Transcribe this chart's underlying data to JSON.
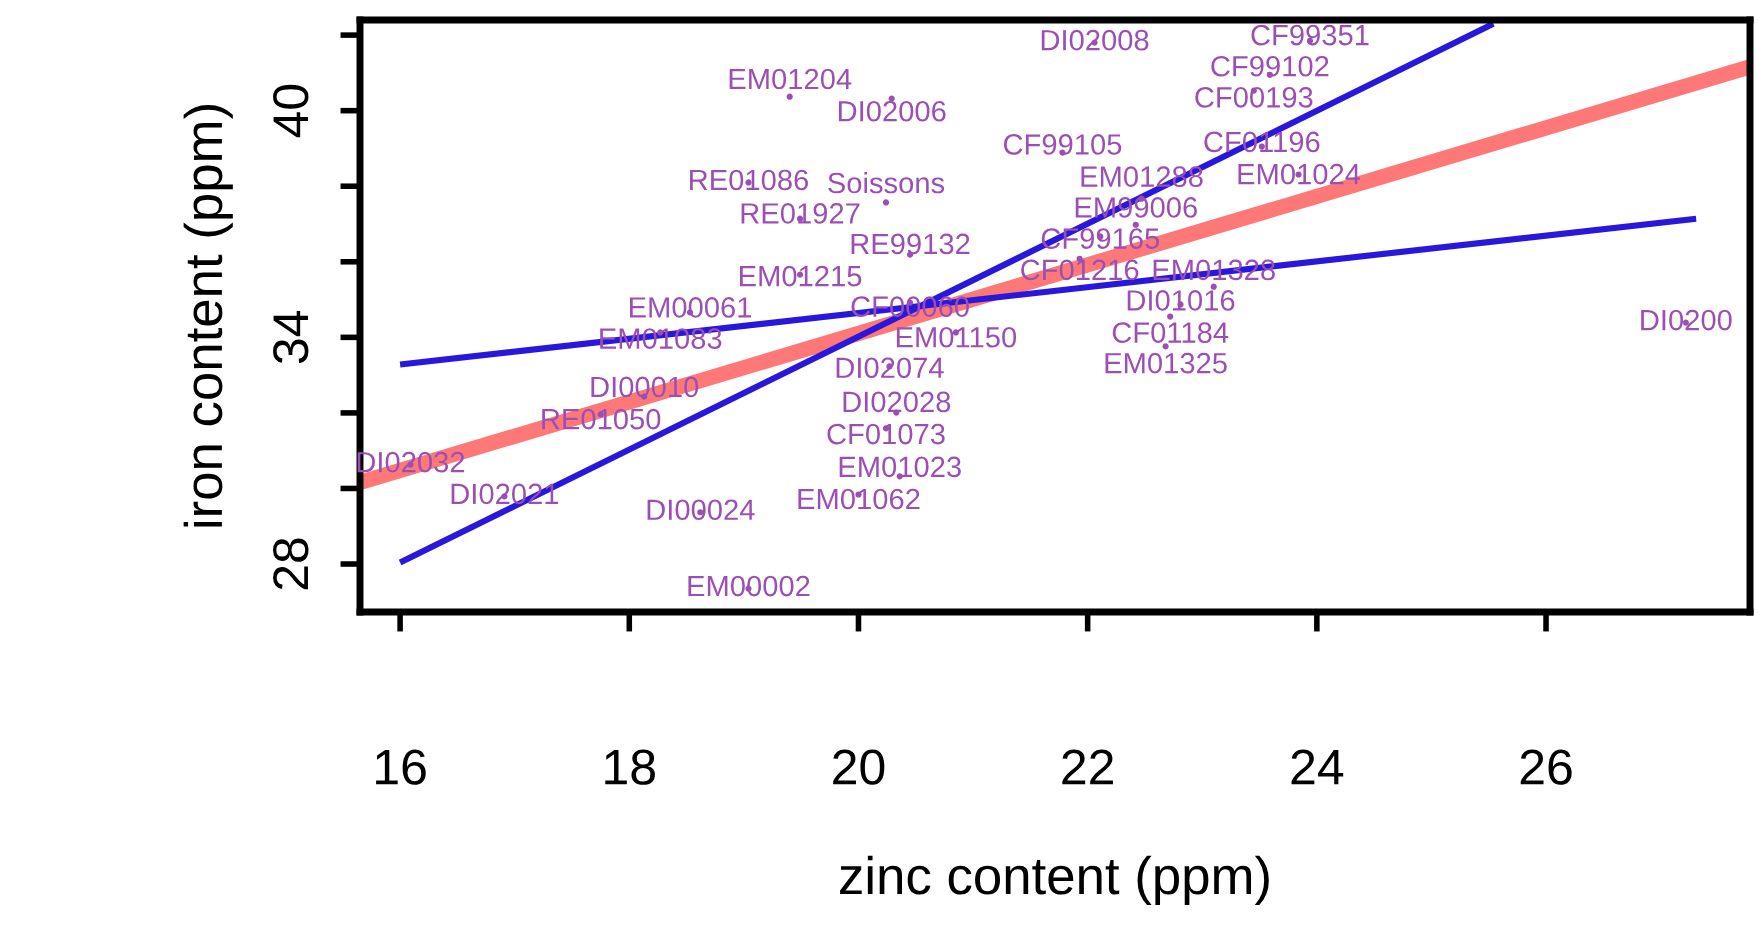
{
  "chart_data": {
    "type": "scatter",
    "xlabel": "zinc content (ppm)",
    "ylabel": "iron content (ppm)",
    "xlim": [
      15.65,
      27.78
    ],
    "ylim": [
      26.73,
      42.4
    ],
    "xticks": [
      16,
      18,
      20,
      22,
      24,
      26
    ],
    "yticks": [
      {
        "value": 28,
        "label": "28"
      },
      {
        "value": 30,
        "label": null
      },
      {
        "value": 32,
        "label": null
      },
      {
        "value": 34,
        "label": "34"
      },
      {
        "value": 36,
        "label": null
      },
      {
        "value": 38,
        "label": null
      },
      {
        "value": 40,
        "label": "40"
      },
      {
        "value": 42,
        "label": null
      }
    ],
    "grid": false,
    "series": [
      {
        "type": "line",
        "color": "#ff7878",
        "x": [
          15.65,
          27.78
        ],
        "values": [
          30.16,
          41.16
        ]
      },
      {
        "type": "line",
        "color": "#2a17dc",
        "x": [
          16,
          27.31
        ],
        "values": [
          33.28,
          37.14
        ]
      },
      {
        "type": "line",
        "color": "#2a17dc",
        "x": [
          16,
          25.54
        ],
        "values": [
          28.04,
          42.3
        ]
      },
      {
        "type": "scatter",
        "color": "#9b4fb5",
        "marker": "circle",
        "x": [
          22.06,
          23.94,
          23.59,
          23.45,
          19.4,
          20.29,
          21.78,
          23.52,
          23.84,
          19.04,
          20.24,
          22.47,
          22.42,
          19.49,
          20.45,
          21.93,
          22.11,
          19.49,
          23.1,
          22.81,
          22.72,
          22.68,
          27.22,
          18.53,
          20.45,
          18.27,
          20.85,
          20.27,
          18.13,
          17.75,
          20.33,
          20.24,
          20.36,
          20.0,
          16.09,
          16.91,
          18.62,
          19.04
        ],
        "values": [
          41.8,
          41.85,
          40.95,
          40.53,
          40.37,
          40.32,
          38.89,
          39.05,
          38.31,
          38.1,
          37.57,
          37.67,
          36.98,
          37.14,
          36.19,
          36.08,
          36.67,
          35.66,
          35.34,
          34.87,
          34.55,
          33.76,
          34.39,
          34.66,
          34.92,
          34.13,
          34.13,
          33.23,
          32.43,
          31.96,
          32.01,
          31.59,
          30.32,
          29.84,
          30.63,
          29.79,
          29.37,
          27.35
        ],
        "value_labels": [
          "DI02008",
          "CF99351",
          "CF99102",
          "CF00193",
          "EM01204",
          "DI02006",
          "CF99105",
          "CF01196",
          "EM01024",
          "RE01086",
          "Soissons",
          "EM01288",
          "EM99006",
          "RE01927",
          "RE99132",
          "CF01216",
          "CF99165",
          "EM01215",
          "EM01328",
          "DI01016",
          "CF01184",
          "EM01325",
          "DI0200",
          "EM00061",
          "CF00060",
          "EM01083",
          "EM01150",
          "DI02074",
          "DI00010",
          "RE01050",
          "DI02028",
          "CF01073",
          "EM01023",
          "EM01062",
          "DI02032",
          "DI02021",
          "DI00024",
          "EM00002"
        ]
      }
    ]
  }
}
